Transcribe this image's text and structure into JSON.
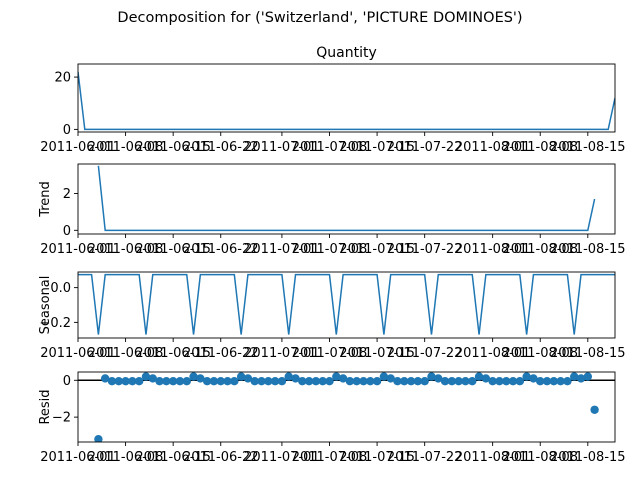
{
  "suptitle": "Decomposition for ('Switzerland', 'PICTURE DOMINOES')",
  "line_color": "#1f77b4",
  "chart_data": [
    {
      "type": "line",
      "title": "Quantity",
      "ylabel": "",
      "dates": [
        "2011-06-01",
        "2011-06-02",
        "2011-08-18",
        "2011-08-19"
      ],
      "values": [
        22,
        0,
        0,
        12
      ],
      "ylim": [
        -1,
        25
      ],
      "yticks": [
        0,
        20
      ],
      "yticklabels": [
        "0",
        "20"
      ]
    },
    {
      "type": "line",
      "title": "",
      "ylabel": "Trend",
      "dates": [
        "2011-06-04",
        "2011-06-05",
        "2011-08-15",
        "2011-08-16"
      ],
      "values": [
        3.5,
        0,
        0,
        1.7
      ],
      "ylim": [
        -0.2,
        3.6
      ],
      "yticks": [
        0,
        2
      ],
      "yticklabels": [
        "0",
        "2"
      ]
    },
    {
      "type": "line",
      "title": "",
      "ylabel": "Seasonal",
      "seasonal_pattern": [
        0.075,
        0.075,
        0.075,
        -0.27,
        0.075,
        0.075,
        0.075
      ],
      "ylim": [
        -0.29,
        0.09
      ],
      "yticks": [
        0,
        -0.2
      ],
      "yticklabels": [
        "0.0",
        "−0.2"
      ]
    },
    {
      "type": "scatter",
      "title": "",
      "ylabel": "Resid",
      "dates": [
        "2011-06-04",
        "2011-06-05",
        "2011-06-06",
        "2011-06-07",
        "2011-06-08",
        "2011-06-09",
        "2011-06-10",
        "2011-06-11",
        "2011-06-12",
        "2011-06-13",
        "2011-06-14",
        "2011-06-15",
        "2011-06-16",
        "2011-06-17",
        "2011-06-18",
        "2011-06-19",
        "2011-06-20",
        "2011-06-21",
        "2011-06-22",
        "2011-06-23",
        "2011-06-24",
        "2011-06-25",
        "2011-06-26",
        "2011-06-27",
        "2011-06-28",
        "2011-06-29",
        "2011-06-30",
        "2011-07-01",
        "2011-07-02",
        "2011-07-03",
        "2011-07-04",
        "2011-07-05",
        "2011-07-06",
        "2011-07-07",
        "2011-07-08",
        "2011-07-09",
        "2011-07-10",
        "2011-07-11",
        "2011-07-12",
        "2011-07-13",
        "2011-07-14",
        "2011-07-15",
        "2011-07-16",
        "2011-07-17",
        "2011-07-18",
        "2011-07-19",
        "2011-07-20",
        "2011-07-21",
        "2011-07-22",
        "2011-07-23",
        "2011-07-24",
        "2011-07-25",
        "2011-07-26",
        "2011-07-27",
        "2011-07-28",
        "2011-07-29",
        "2011-07-30",
        "2011-07-31",
        "2011-08-01",
        "2011-08-02",
        "2011-08-03",
        "2011-08-04",
        "2011-08-05",
        "2011-08-06",
        "2011-08-07",
        "2011-08-08",
        "2011-08-09",
        "2011-08-10",
        "2011-08-11",
        "2011-08-12",
        "2011-08-13",
        "2011-08-14",
        "2011-08-15",
        "2011-08-16"
      ],
      "values": [
        -3.2,
        0.1,
        -0.05,
        -0.05,
        -0.05,
        -0.05,
        -0.05,
        0.2,
        0.1,
        -0.05,
        -0.05,
        -0.05,
        -0.05,
        -0.05,
        0.2,
        0.1,
        -0.05,
        -0.05,
        -0.05,
        -0.05,
        -0.05,
        0.2,
        0.1,
        -0.05,
        -0.05,
        -0.05,
        -0.05,
        -0.05,
        0.2,
        0.1,
        -0.05,
        -0.05,
        -0.05,
        -0.05,
        -0.05,
        0.2,
        0.1,
        -0.05,
        -0.05,
        -0.05,
        -0.05,
        -0.05,
        0.2,
        0.1,
        -0.05,
        -0.05,
        -0.05,
        -0.05,
        -0.05,
        0.2,
        0.1,
        -0.05,
        -0.05,
        -0.05,
        -0.05,
        -0.05,
        0.2,
        0.1,
        -0.05,
        -0.05,
        -0.05,
        -0.05,
        -0.05,
        0.2,
        0.1,
        -0.05,
        -0.05,
        -0.05,
        -0.05,
        -0.05,
        0.2,
        0.1,
        0.2,
        -1.6
      ],
      "ylim": [
        -3.35,
        0.45
      ],
      "yticks": [
        0,
        -2
      ],
      "yticklabels": [
        "0",
        "−2"
      ],
      "hline": 0
    }
  ],
  "x_axis": {
    "range": [
      "2011-06-01",
      "2011-08-19"
    ],
    "ticks": [
      "2011-06-01",
      "2011-06-08",
      "2011-06-15",
      "2011-06-22",
      "2011-07-01",
      "2011-07-08",
      "2011-07-15",
      "2011-07-22",
      "2011-08-01",
      "2011-08-08",
      "2011-08-15"
    ],
    "labels": [
      "2011-06-01",
      "2011-06-08",
      "2011-06-15",
      "2011-06-22",
      "2011-07-01",
      "2011-07-08",
      "2011-07-15",
      "2011-07-22",
      "2011-08-01",
      "2011-08-08",
      "2011-08-15"
    ]
  }
}
